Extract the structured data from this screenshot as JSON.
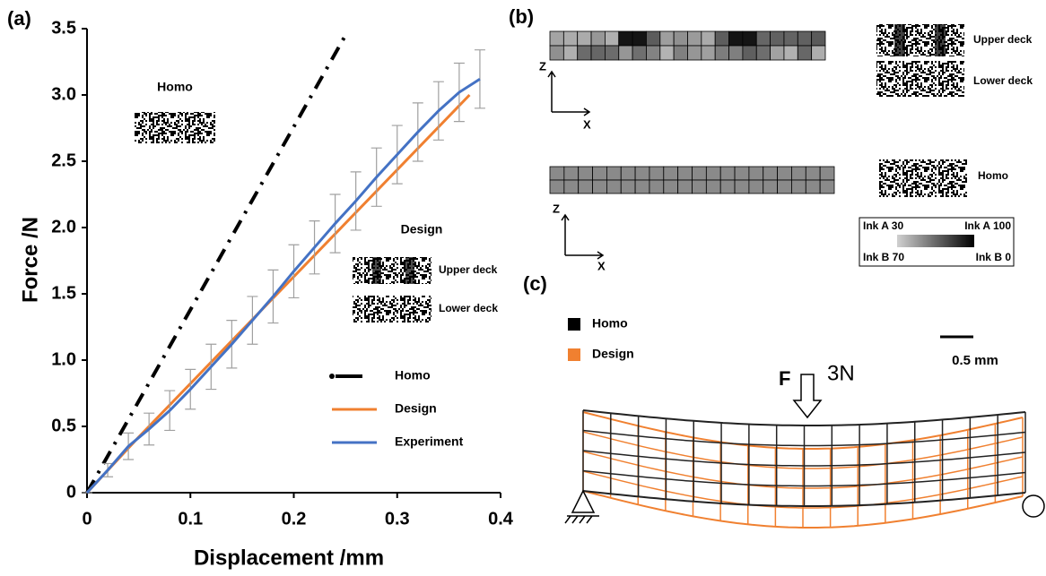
{
  "chart_data": {
    "type": "line",
    "panel_label": "(a)",
    "xlabel": "Displacement /mm",
    "ylabel": "Force /N",
    "xlim": [
      0,
      0.4
    ],
    "ylim": [
      0,
      3.5
    ],
    "xticks": [
      0,
      0.1,
      0.2,
      0.3,
      0.4
    ],
    "yticks": [
      0,
      0.5,
      {
        "value": 1,
        "label": "1.0"
      },
      1.5,
      {
        "value": 2,
        "label": "2.0"
      },
      2.5,
      {
        "value": 3,
        "label": "3.0"
      },
      3.5
    ],
    "legend": "lower right",
    "series": [
      {
        "name": "Homo",
        "color": "#000000",
        "style": "dash-dot",
        "x": [
          0,
          0.25
        ],
        "values": [
          0,
          3.45
        ]
      },
      {
        "name": "Design",
        "color": "#f08030",
        "style": "solid",
        "x": [
          0,
          0.05,
          0.37
        ],
        "values": [
          0,
          0.42,
          3.0
        ]
      },
      {
        "name": "Experiment",
        "color": "#4472c4",
        "style": "solid",
        "x": [
          0,
          0.02,
          0.04,
          0.06,
          0.08,
          0.1,
          0.12,
          0.14,
          0.16,
          0.18,
          0.2,
          0.22,
          0.24,
          0.26,
          0.28,
          0.3,
          0.32,
          0.34,
          0.36,
          0.38
        ],
        "values": [
          0,
          0.17,
          0.35,
          0.48,
          0.62,
          0.78,
          0.95,
          1.12,
          1.3,
          1.48,
          1.67,
          1.85,
          2.03,
          2.2,
          2.38,
          2.55,
          2.72,
          2.88,
          3.02,
          3.12
        ],
        "errors": [
          0,
          0.05,
          0.1,
          0.12,
          0.15,
          0.15,
          0.17,
          0.18,
          0.18,
          0.2,
          0.2,
          0.2,
          0.22,
          0.22,
          0.22,
          0.22,
          0.22,
          0.22,
          0.22,
          0.22
        ]
      }
    ],
    "insets": {
      "homo": "Homo",
      "design": "Design",
      "upper_deck": "Upper deck",
      "lower_deck": "Lower deck"
    }
  },
  "panel_b": {
    "label": "(b)",
    "axis_z": "Z",
    "axis_x": "X",
    "upper_deck": "Upper deck",
    "lower_deck": "Lower deck",
    "homo": "Homo",
    "colorbar": {
      "top_left": "Ink A 30",
      "top_right": "Ink A 100",
      "bottom_left": "Ink B 70",
      "bottom_right": "Ink B 0"
    }
  },
  "panel_c": {
    "label": "(c)",
    "legend": [
      "Homo",
      "Design"
    ],
    "force_symbol": "F",
    "force": "3N",
    "scale": "0.5 mm"
  }
}
